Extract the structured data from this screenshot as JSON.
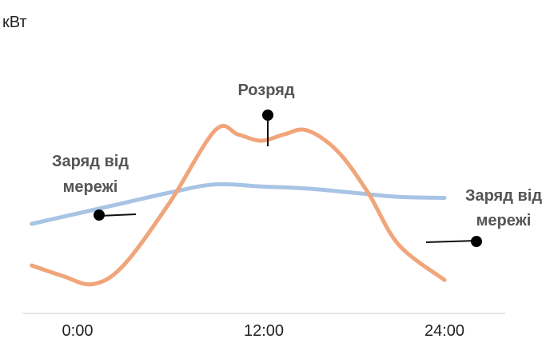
{
  "chart_data": {
    "type": "line",
    "ylabel": "кВт",
    "xlabel": "",
    "title": "",
    "grid": false,
    "x_ticks": [
      "0:00",
      "12:00",
      "24:00"
    ],
    "series": [
      {
        "color": "#a8c4e4",
        "x": [
          -3,
          0,
          3,
          6,
          9,
          12,
          15,
          18,
          21,
          24
        ],
        "y": [
          0.5,
          1.0,
          1.5,
          2.0,
          2.4,
          2.3,
          2.2,
          2.0,
          1.8,
          1.75
        ]
      },
      {
        "color": "#f0a57a",
        "x": [
          -3,
          -1,
          1,
          3,
          6,
          9,
          10.5,
          12,
          13.5,
          15,
          17,
          19,
          21,
          24
        ],
        "y": [
          -1.5,
          -2.0,
          -2.4,
          -1.5,
          1.5,
          5.0,
          4.8,
          4.5,
          4.8,
          5.0,
          4.0,
          2.0,
          -0.5,
          -2.2
        ]
      }
    ],
    "annotations": [
      {
        "lines": [
          "Заряд від",
          "мережі"
        ]
      },
      {
        "lines": [
          "Розряд"
        ]
      },
      {
        "lines": [
          "Заряд від",
          "мережі"
        ]
      }
    ]
  }
}
